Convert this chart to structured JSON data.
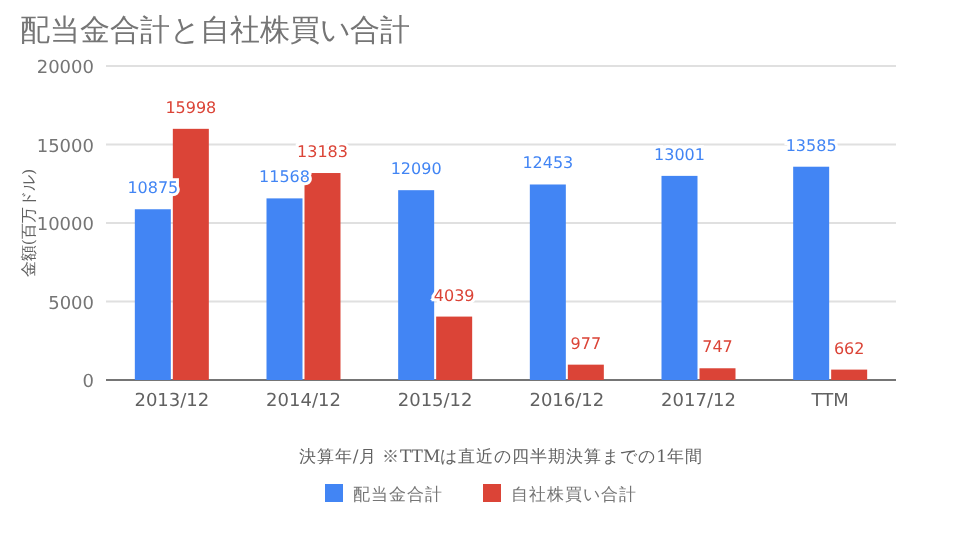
{
  "chart_data": {
    "type": "bar",
    "title": "配当金合計と自社株買い合計",
    "xlabel": "決算年/月 ※TTMは直近の四半期決算までの1年間",
    "ylabel": "金額(百万ドル)",
    "categories": [
      "2013/12",
      "2014/12",
      "2015/12",
      "2016/12",
      "2017/12",
      "TTM"
    ],
    "series": [
      {
        "name": "配当金合計",
        "color": "#4285f4",
        "values": [
          10875,
          11568,
          12090,
          12453,
          13001,
          13585
        ]
      },
      {
        "name": "自社株買い合計",
        "color": "#db4437",
        "values": [
          15998,
          13183,
          4039,
          977,
          747,
          662
        ]
      }
    ],
    "ylim": [
      0,
      20000
    ],
    "yticks": [
      0,
      5000,
      10000,
      15000,
      20000
    ],
    "grid": "y",
    "legend": "bottom",
    "data_labels": true
  }
}
